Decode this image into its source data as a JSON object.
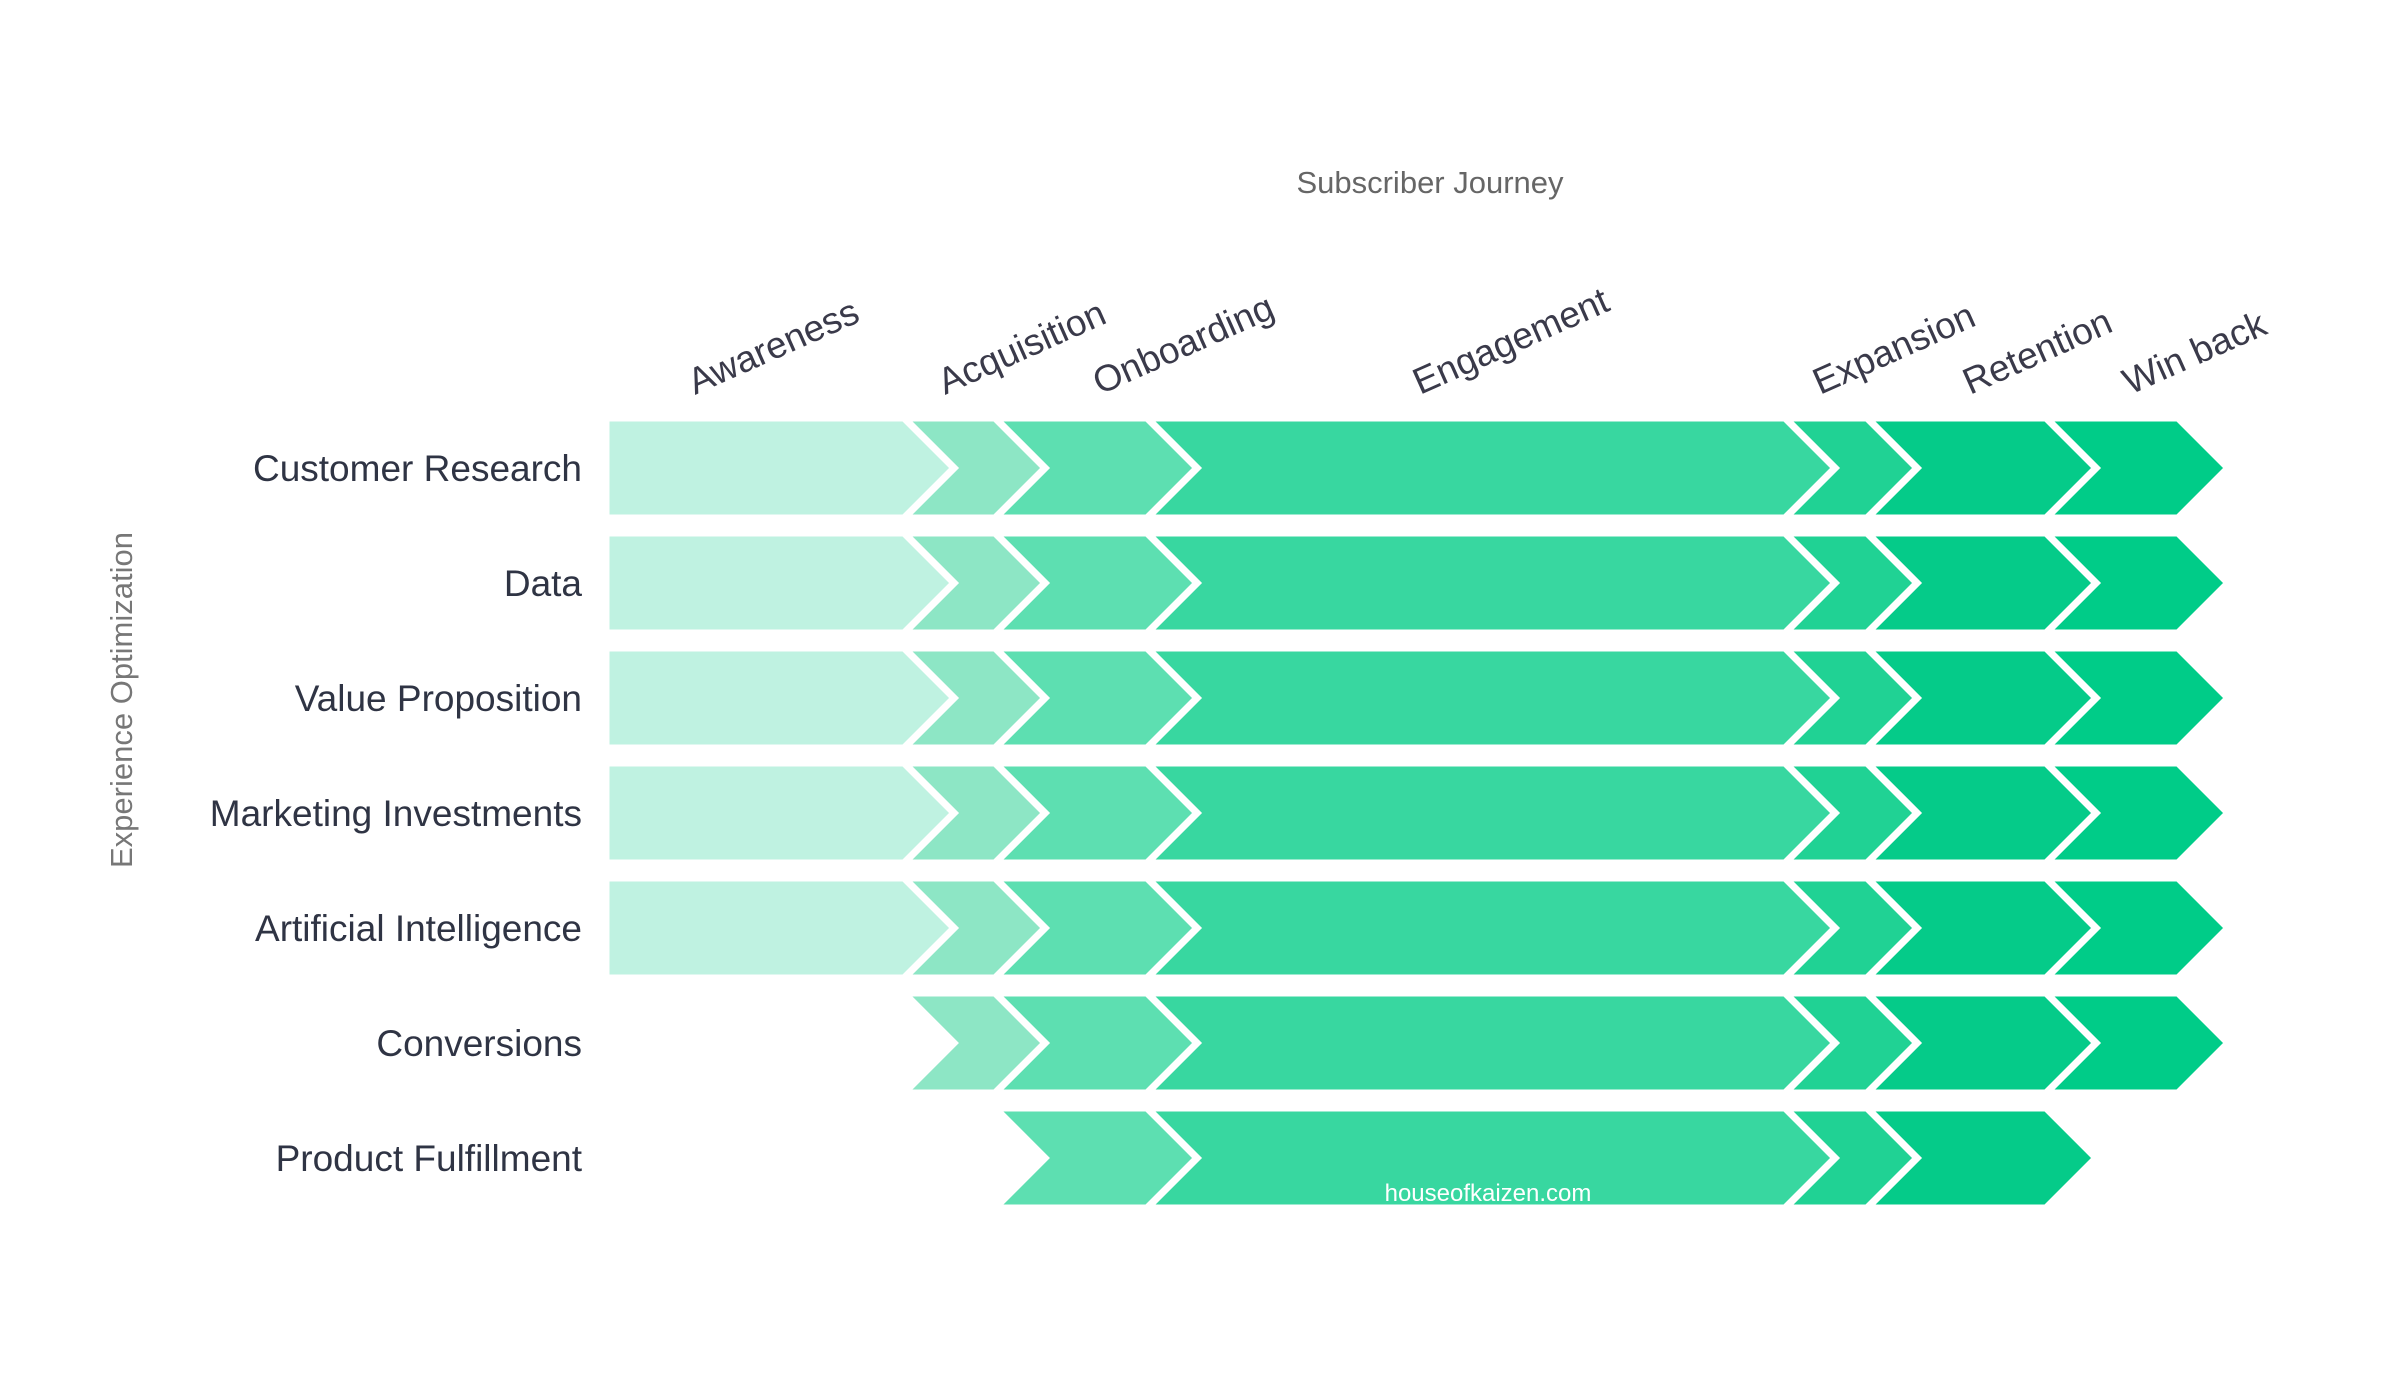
{
  "diagram": {
    "x_title": "Subscriber Journey",
    "y_title": "Experience Optimization",
    "watermark": "houseofkaizen.com",
    "stages": [
      {
        "label": "Awareness",
        "color": "#bff2e1"
      },
      {
        "label": "Acquisition",
        "color": "#8de6c5"
      },
      {
        "label": "Onboarding",
        "color": "#5ddfb1"
      },
      {
        "label": "Engagement",
        "color": "#38d7a0"
      },
      {
        "label": "Expansion",
        "color": "#20d294"
      },
      {
        "label": "Retention",
        "color": "#05cb89"
      },
      {
        "label": "Win back",
        "color": "#00cc88"
      }
    ],
    "rows": [
      {
        "label": "Customer Research",
        "first_stage": 0,
        "last_stage": 6
      },
      {
        "label": "Data",
        "first_stage": 0,
        "last_stage": 6
      },
      {
        "label": "Value Proposition",
        "first_stage": 0,
        "last_stage": 6
      },
      {
        "label": "Marketing Investments",
        "first_stage": 0,
        "last_stage": 6
      },
      {
        "label": "Artificial Intelligence",
        "first_stage": 0,
        "last_stage": 6
      },
      {
        "label": "Conversions",
        "first_stage": 1,
        "last_stage": 6
      },
      {
        "label": "Product Fulfillment",
        "first_stage": 2,
        "last_stage": 5
      }
    ]
  }
}
